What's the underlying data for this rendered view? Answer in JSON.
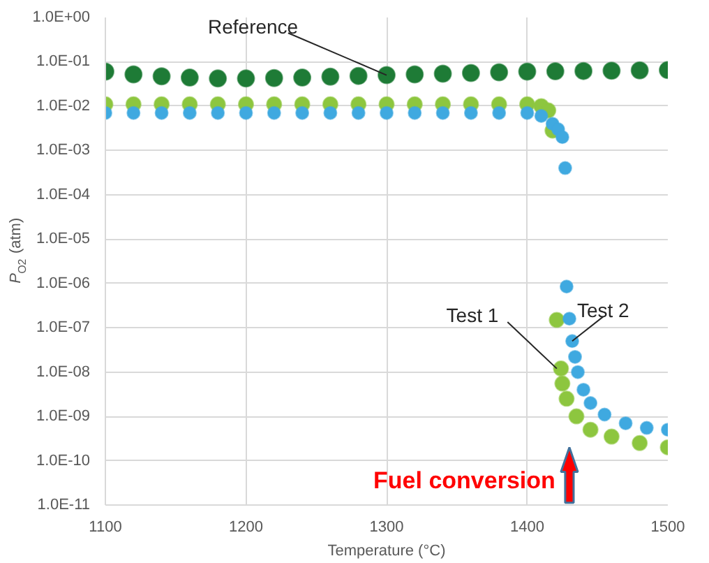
{
  "chart_data": {
    "type": "scatter",
    "xlabel": "Temperature (°C)",
    "ylabel": "P$_{O2}$ (atm)",
    "log": "y",
    "grid": true,
    "marker": "circle",
    "xlim": [
      1100,
      1500
    ],
    "xticks": [
      1100,
      1200,
      1300,
      1400,
      1500
    ],
    "ylim": [
      1e-11,
      1
    ],
    "yticks": [
      {
        "value": 1,
        "label": "1.0E+00"
      },
      {
        "value": 0.1,
        "label": "1.0E-01"
      },
      {
        "value": 0.01,
        "label": "1.0E-02"
      },
      {
        "value": 0.001,
        "label": "1.0E-03"
      },
      {
        "value": 0.0001,
        "label": "1.0E-04"
      },
      {
        "value": 1e-05,
        "label": "1.0E-05"
      },
      {
        "value": 1e-06,
        "label": "1.0E-06"
      },
      {
        "value": 1e-07,
        "label": "1.0E-07"
      },
      {
        "value": 1e-08,
        "label": "1.0E-08"
      },
      {
        "value": 1e-09,
        "label": "1.0E-09"
      },
      {
        "value": 1e-10,
        "label": "1.0E-10"
      },
      {
        "value": 1e-11,
        "label": "1.0E-11"
      }
    ],
    "series": [
      {
        "color": "#1e7b36",
        "x": [
          1100,
          1120,
          1140,
          1160,
          1180,
          1200,
          1220,
          1240,
          1260,
          1280,
          1300,
          1320,
          1340,
          1360,
          1380,
          1400,
          1420,
          1440,
          1460,
          1480,
          1500
        ],
        "values": [
          0.06,
          0.052,
          0.047,
          0.044,
          0.042,
          0.042,
          0.043,
          0.044,
          0.046,
          0.048,
          0.05,
          0.052,
          0.054,
          0.056,
          0.058,
          0.06,
          0.061,
          0.062,
          0.063,
          0.064,
          0.065
        ]
      },
      {
        "color": "#8dc63f",
        "x": [
          1100,
          1120,
          1140,
          1160,
          1180,
          1200,
          1220,
          1240,
          1260,
          1280,
          1300,
          1320,
          1340,
          1360,
          1380,
          1400,
          1410,
          1415,
          1418,
          1421,
          1424,
          1425,
          1428,
          1435,
          1445,
          1460,
          1480,
          1500
        ],
        "values": [
          0.011,
          0.011,
          0.011,
          0.011,
          0.011,
          0.011,
          0.011,
          0.011,
          0.011,
          0.011,
          0.011,
          0.011,
          0.011,
          0.011,
          0.011,
          0.011,
          0.01,
          0.008,
          0.0028,
          1.5e-07,
          1.2e-08,
          5.5e-09,
          2.5e-09,
          1e-09,
          5e-10,
          3.5e-10,
          2.5e-10,
          2e-10
        ]
      },
      {
        "color": "#3fa9e0",
        "x": [
          1100,
          1120,
          1140,
          1160,
          1180,
          1200,
          1220,
          1240,
          1260,
          1280,
          1300,
          1320,
          1340,
          1360,
          1380,
          1400,
          1410,
          1418,
          1422,
          1425,
          1427,
          1428,
          1430,
          1432,
          1434,
          1436,
          1440,
          1445,
          1455,
          1470,
          1485,
          1500
        ],
        "values": [
          0.007,
          0.007,
          0.007,
          0.007,
          0.007,
          0.007,
          0.007,
          0.007,
          0.007,
          0.007,
          0.007,
          0.007,
          0.007,
          0.007,
          0.007,
          0.007,
          0.006,
          0.004,
          0.003,
          0.002,
          0.0004,
          8.5e-07,
          1.6e-07,
          5e-08,
          2.2e-08,
          1e-08,
          4e-09,
          2e-09,
          1.1e-09,
          7e-10,
          5.5e-10,
          5e-10
        ]
      }
    ],
    "annotations": [
      {
        "text": "Reference",
        "x": 1300,
        "y": 0.05
      },
      {
        "text": "Test 1",
        "x": 1421,
        "y": 1.2e-08
      },
      {
        "text": "Test 2",
        "x": 1432,
        "y": 5e-08
      },
      "Fuel conversion"
    ]
  }
}
